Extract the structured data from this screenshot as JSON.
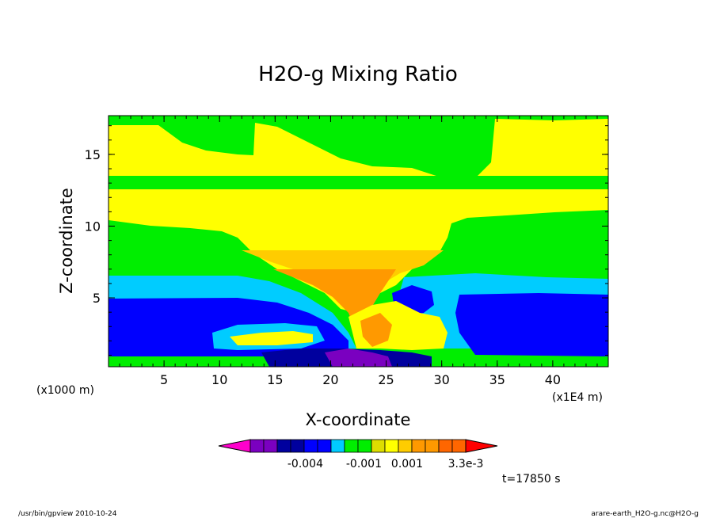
{
  "chart_data": {
    "type": "heatmap",
    "title": "H2O-g Mixing Ratio",
    "xlabel": "X-coordinate",
    "ylabel": "Z-coordinate",
    "x_unit": "(x1E4 m)",
    "y_unit": "(x1000 m)",
    "xlim": [
      0,
      45
    ],
    "ylim": [
      0.2,
      17.7
    ],
    "x_ticks": [
      5,
      10,
      15,
      20,
      25,
      30,
      35,
      40
    ],
    "y_ticks": [
      5,
      10,
      15
    ],
    "colorbar": {
      "colors": [
        "#ff00cc",
        "#7a00c0",
        "#7a00c0",
        "#00009e",
        "#00009e",
        "#0000ff",
        "#0000ff",
        "#00ccff",
        "#00ee00",
        "#00ee00",
        "#dddd00",
        "#ffff00",
        "#ffcc00",
        "#ff9900",
        "#ff9900",
        "#ff6600",
        "#ff6600",
        "#ff0000"
      ],
      "tick_labels": [
        "-0.004",
        "-0.001",
        "0.001",
        "3.3e-3"
      ]
    },
    "layers_note": "",
    "time_label": "t=17850 s"
  },
  "footer": {
    "left": "/usr/bin/gpview  2010-10-24",
    "right": "arare-earth_H2O-g.nc@H2O-g"
  }
}
